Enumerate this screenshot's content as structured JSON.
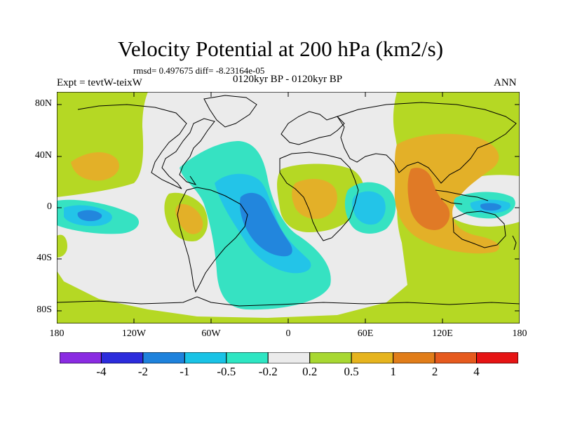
{
  "title": "Velocity Potential at 200 hPa (km2/s)",
  "stats": "rmsd= 0.497675  diff= -8.23164e-05",
  "left_label": "Expt = tevtW-teixW",
  "center_label": "0120kyr BP - 0120kyr BP",
  "right_label": "ANN",
  "lat_ticks": [
    "80N",
    "40N",
    "0",
    "40S",
    "80S"
  ],
  "lon_ticks": [
    "180",
    "120W",
    "60W",
    "0",
    "60E",
    "120E",
    "180"
  ],
  "colorbar": {
    "labels": [
      "-4",
      "-2",
      "-1",
      "-0.5",
      "-0.2",
      "0.2",
      "0.5",
      "1",
      "2",
      "4"
    ],
    "colors": [
      "#8a2be2",
      "#2c2cdc",
      "#1e82dc",
      "#19c3e6",
      "#2ee6c3",
      "#ebebeb",
      "#a8d832",
      "#e6b41e",
      "#e17d19",
      "#e65a1e",
      "#e61414"
    ]
  },
  "colors": {
    "neutral": "#ebebeb",
    "weak_pos": "#b5d824",
    "mod_pos": "#e3b028",
    "strong_pos": "#e07a26",
    "weak_neg": "#36e2c2",
    "mod_neg": "#23c4e8",
    "strong_neg": "#2286dd",
    "coast": "#000000"
  }
}
